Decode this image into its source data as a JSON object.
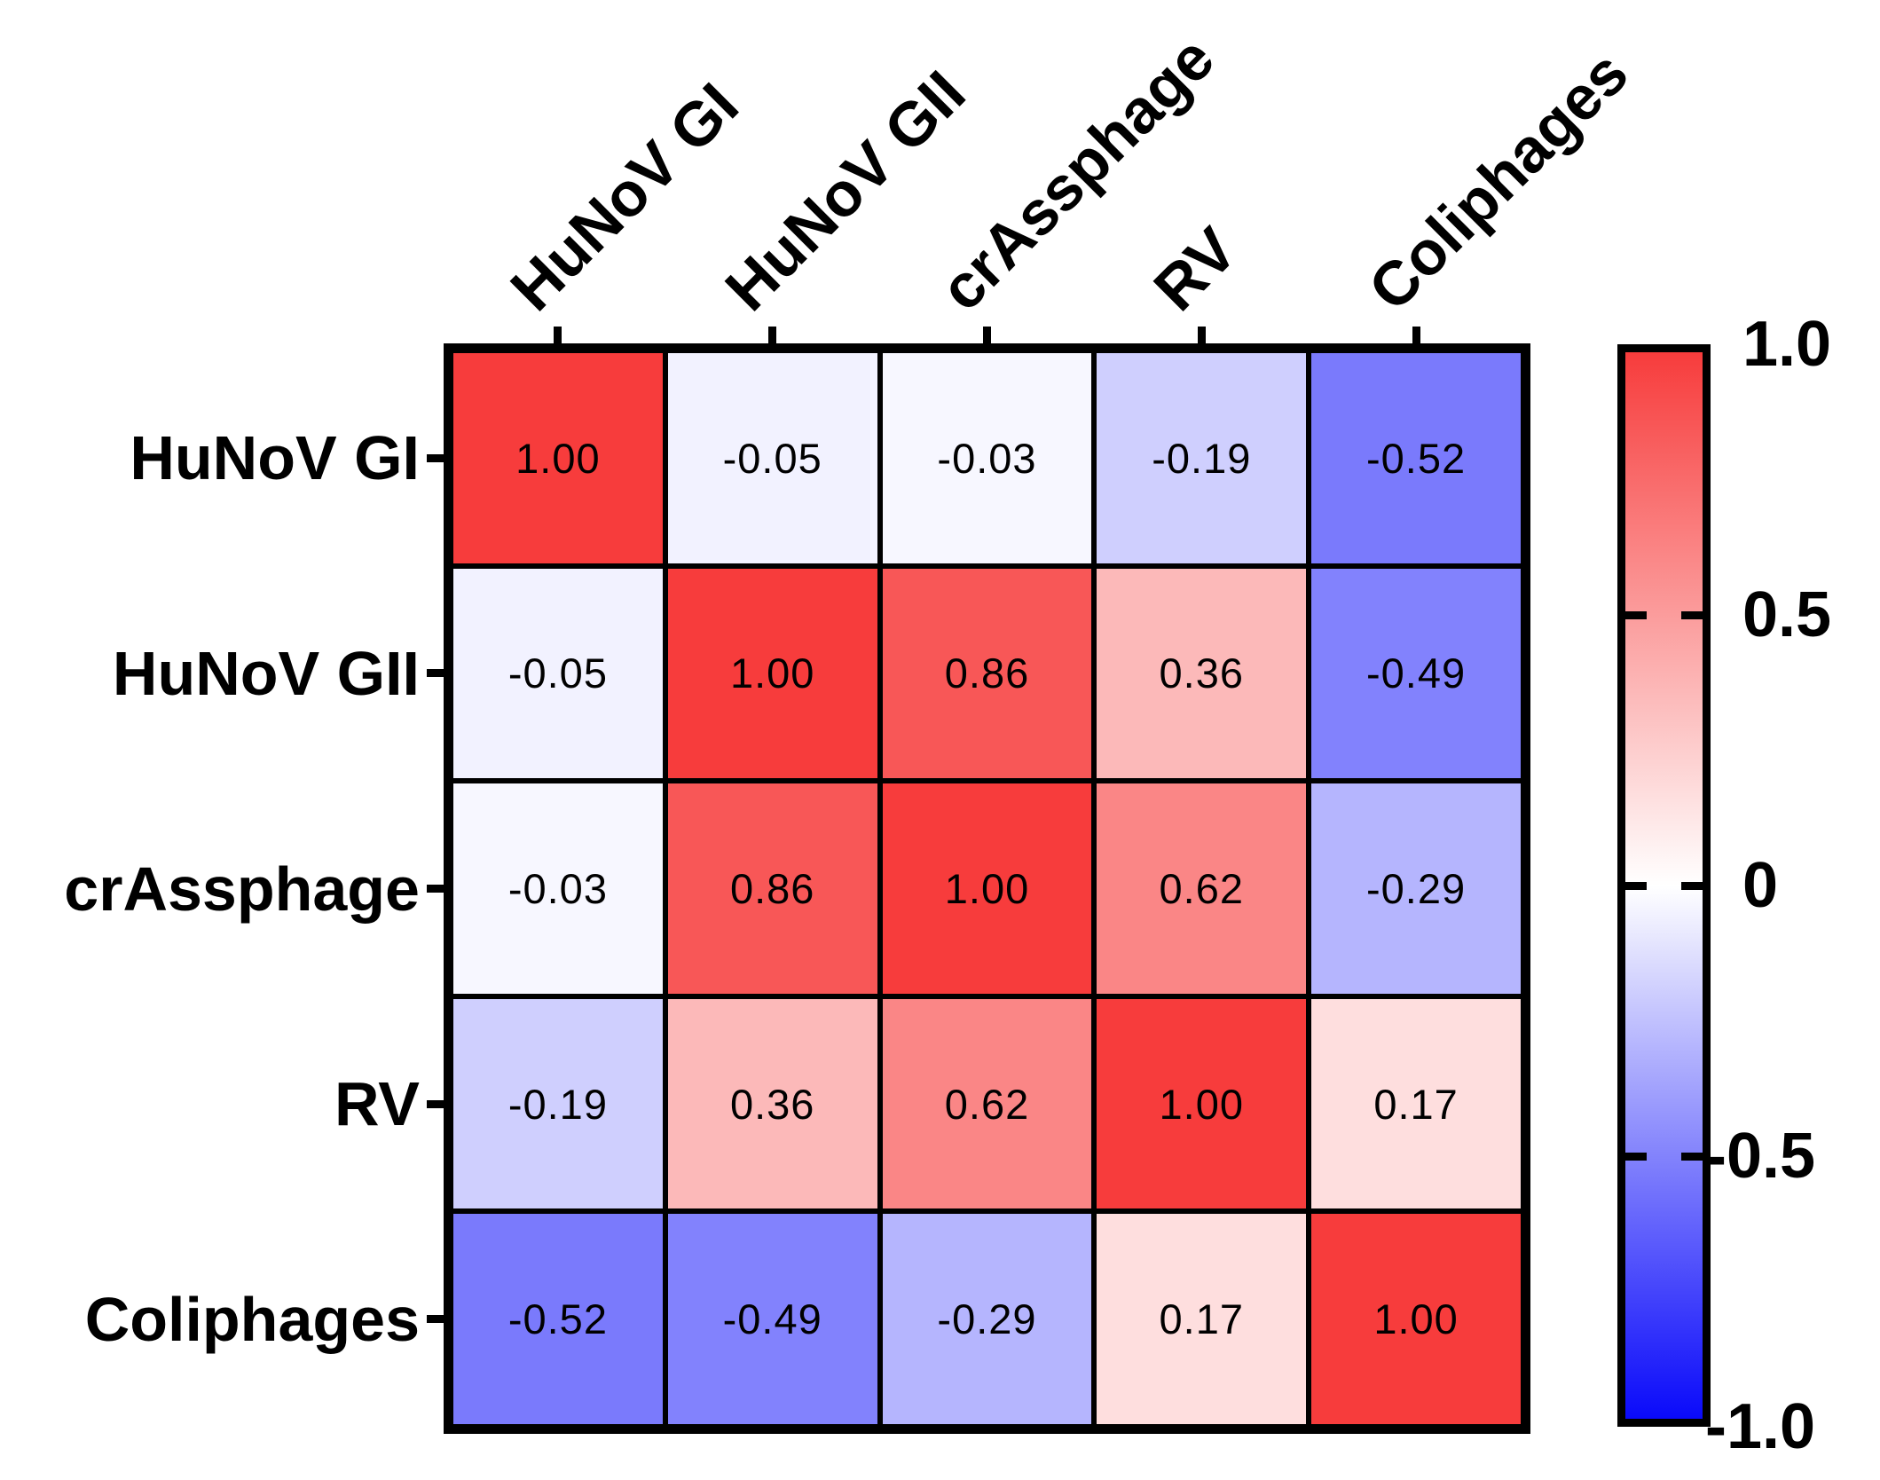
{
  "figure": {
    "background": "#FFFFFF",
    "description": "Correlation matrix heatmap of viral indicators with red-white-blue colorbar"
  },
  "chart_data": {
    "type": "heatmap",
    "title": "",
    "xlabel": "",
    "ylabel": "",
    "categories": [
      "HuNoV GI",
      "HuNoV GII",
      "crAssphage",
      "RV",
      "Coliphages"
    ],
    "matrix": [
      [
        1.0,
        -0.05,
        -0.03,
        -0.19,
        -0.52
      ],
      [
        -0.05,
        1.0,
        0.86,
        0.36,
        -0.49
      ],
      [
        -0.03,
        0.86,
        1.0,
        0.62,
        -0.29
      ],
      [
        -0.19,
        0.36,
        0.62,
        1.0,
        0.17
      ],
      [
        -0.52,
        -0.49,
        -0.29,
        0.17,
        1.0
      ]
    ],
    "cell_labels": [
      [
        "1.00",
        "-0.05",
        "-0.03",
        "-0.19",
        "-0.52"
      ],
      [
        "-0.05",
        "1.00",
        "0.86",
        "0.36",
        "-0.49"
      ],
      [
        "-0.03",
        "0.86",
        "1.00",
        "0.62",
        "-0.29"
      ],
      [
        "-0.19",
        "0.36",
        "0.62",
        "1.00",
        "0.17"
      ],
      [
        "-0.52",
        "-0.49",
        "-0.29",
        "0.17",
        "1.00"
      ]
    ],
    "colormap": {
      "color_max": "#F73C3C",
      "color_mid": "#FFFFFF",
      "color_min": "#0A0AFA",
      "grid_line_color": "#000000",
      "cell_text_color": "#000000"
    },
    "colorbar": {
      "position": "right",
      "max": 1.0,
      "min": -1.0,
      "tick_values": [
        1.0,
        0.5,
        0,
        -0.5,
        -1.0
      ],
      "tick_labels": [
        "1.0",
        "0.5",
        "0",
        "-0.5",
        "-1.0"
      ]
    },
    "layout_hints": {
      "x_tick_rotation_deg": 45,
      "grid": "black cell borders",
      "legend_position": "right"
    }
  }
}
